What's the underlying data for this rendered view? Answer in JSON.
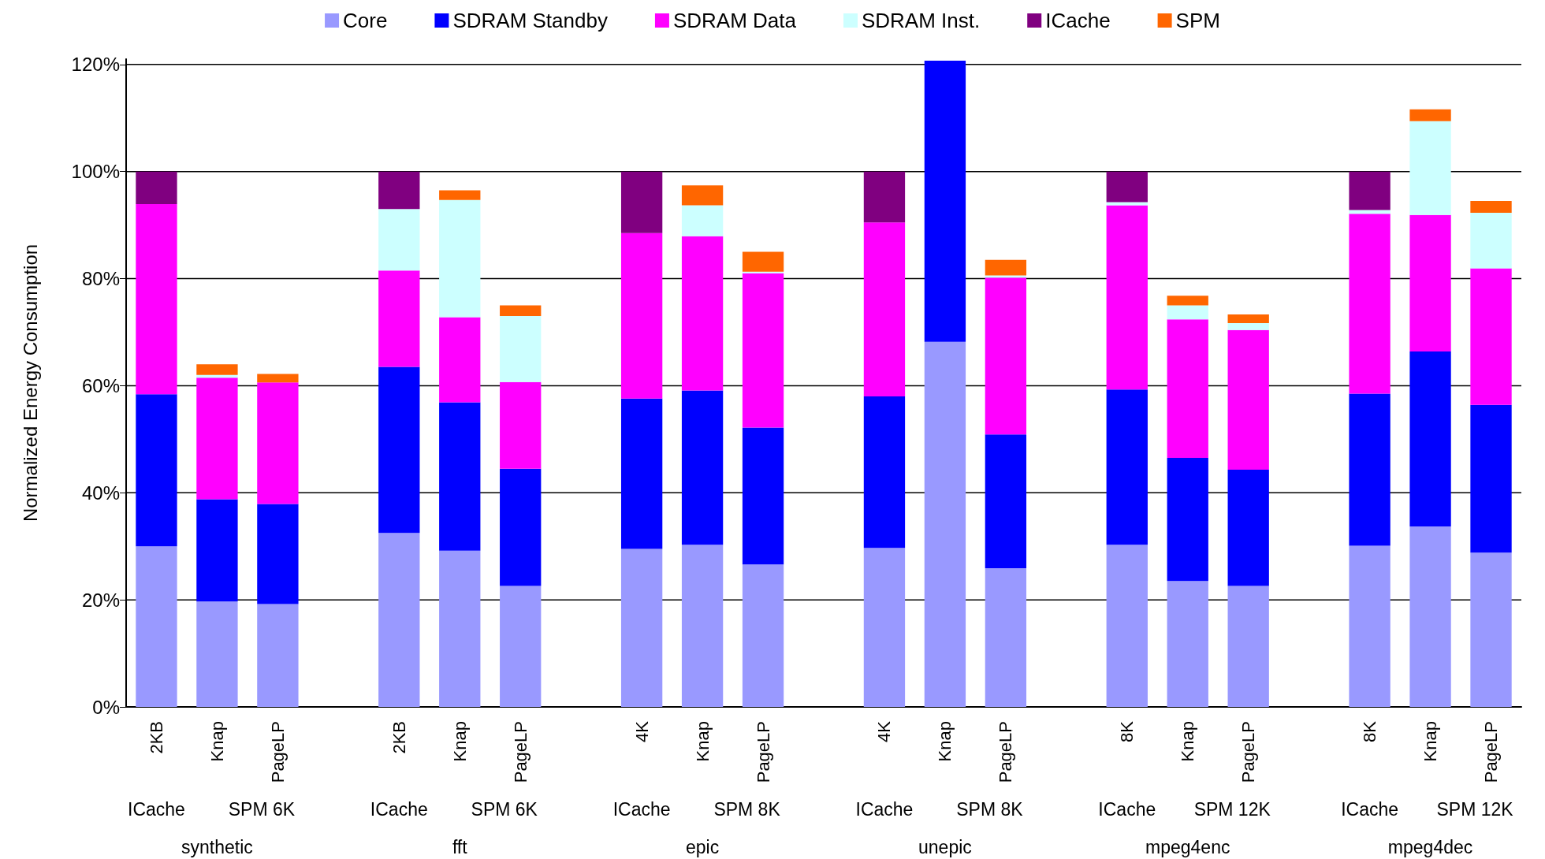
{
  "chart_data": {
    "type": "bar",
    "ylabel": "Normalized Energy Consumption",
    "stacked": true,
    "legend": "top",
    "grid": "y",
    "categories": [
      "2KB",
      "Knap",
      "PageLP",
      null,
      "2KB",
      "Knap",
      "PageLP",
      null,
      "4K",
      "Knap",
      "PageLP",
      null,
      "4K",
      "Knap",
      "PageLP",
      null,
      "8K",
      "Knap",
      "PageLP",
      null,
      "8K",
      "Knap",
      "PageLP"
    ],
    "ylim": [
      0,
      121
    ],
    "yticks": [
      {
        "value": 0,
        "label": "0%"
      },
      {
        "value": 20,
        "label": "20%"
      },
      {
        "value": 40,
        "label": "40%"
      },
      {
        "value": 60,
        "label": "60%"
      },
      {
        "value": 80,
        "label": "80%"
      },
      {
        "value": 100,
        "label": "100%"
      },
      {
        "value": 120,
        "label": "120%"
      }
    ],
    "series": [
      {
        "name": "Core",
        "color": "#9999ff",
        "values": [
          30,
          19.7,
          19.2,
          null,
          32.5,
          29.2,
          22.6,
          null,
          29.5,
          30.3,
          26.6,
          null,
          29.7,
          68.2,
          25.9,
          null,
          30.3,
          23.5,
          22.6,
          null,
          30.1,
          33.7,
          28.8
        ]
      },
      {
        "name": "SDRAM Standby",
        "color": "#0000ff",
        "values": [
          28.4,
          19.1,
          18.7,
          null,
          31,
          27.7,
          21.9,
          null,
          28.1,
          28.8,
          25.6,
          null,
          28.3,
          52.5,
          25,
          null,
          29,
          23,
          21.7,
          null,
          28.4,
          32.7,
          27.6
        ]
      },
      {
        "name": "SDRAM Data",
        "color": "#ff00ff",
        "values": [
          35.5,
          22.7,
          22.7,
          null,
          18,
          15.9,
          16.2,
          null,
          30.9,
          28.8,
          28.8,
          null,
          32.5,
          null,
          29.3,
          null,
          34.4,
          25.9,
          26.1,
          null,
          33.6,
          25.5,
          25.5
        ]
      },
      {
        "name": "SDRAM Inst.",
        "color": "#ccffff",
        "values": [
          null,
          0.5,
          null,
          null,
          11.5,
          21.9,
          12.3,
          null,
          null,
          5.8,
          0.3,
          null,
          null,
          null,
          0.4,
          null,
          0.6,
          2.6,
          1.3,
          null,
          0.7,
          17.5,
          10.4
        ]
      },
      {
        "name": "ICache",
        "color": "#800080",
        "values": [
          6.1,
          null,
          null,
          null,
          7,
          null,
          null,
          null,
          11.5,
          null,
          null,
          null,
          9.5,
          null,
          null,
          null,
          5.7,
          null,
          null,
          null,
          7.2,
          null,
          null
        ]
      },
      {
        "name": "SPM",
        "color": "#ff6600",
        "values": [
          null,
          2,
          1.6,
          null,
          null,
          1.8,
          2,
          null,
          null,
          3.7,
          3.7,
          null,
          null,
          null,
          2.9,
          null,
          null,
          1.8,
          1.6,
          null,
          null,
          2.2,
          2.2
        ]
      }
    ],
    "annotations": [
      "ICache",
      "SPM 6K",
      "synthetic",
      "ICache",
      "SPM 6K",
      "fft",
      "ICache",
      "SPM 8K",
      "epic",
      "ICache",
      "SPM 8K",
      "unepic",
      "ICache",
      "SPM 12K",
      "mpeg4enc",
      "ICache",
      "SPM 12K",
      "mpeg4dec"
    ]
  }
}
